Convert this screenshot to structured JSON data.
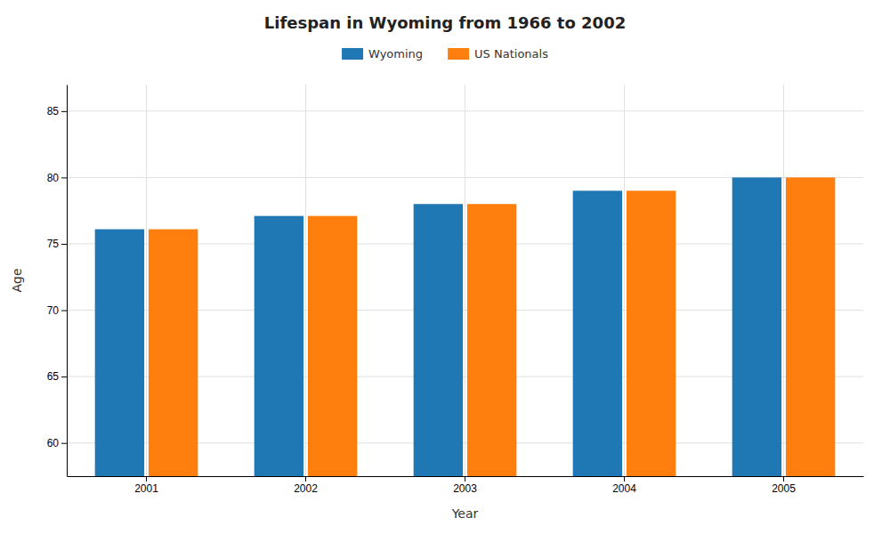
{
  "chart_data": {
    "type": "bar",
    "title": "Lifespan in Wyoming from 1966 to 2002",
    "xlabel": "Year",
    "ylabel": "Age",
    "categories": [
      "2001",
      "2002",
      "2003",
      "2004",
      "2005"
    ],
    "series": [
      {
        "name": "Wyoming",
        "values": [
          76.1,
          77.1,
          78.0,
          79.0,
          80.0
        ]
      },
      {
        "name": "US Nationals",
        "values": [
          76.1,
          77.1,
          78.0,
          79.0,
          80.0
        ]
      }
    ],
    "ylim": [
      57.5,
      87
    ],
    "yticks": [
      60,
      65,
      70,
      75,
      80,
      85
    ],
    "grid": true,
    "legend": "top"
  }
}
